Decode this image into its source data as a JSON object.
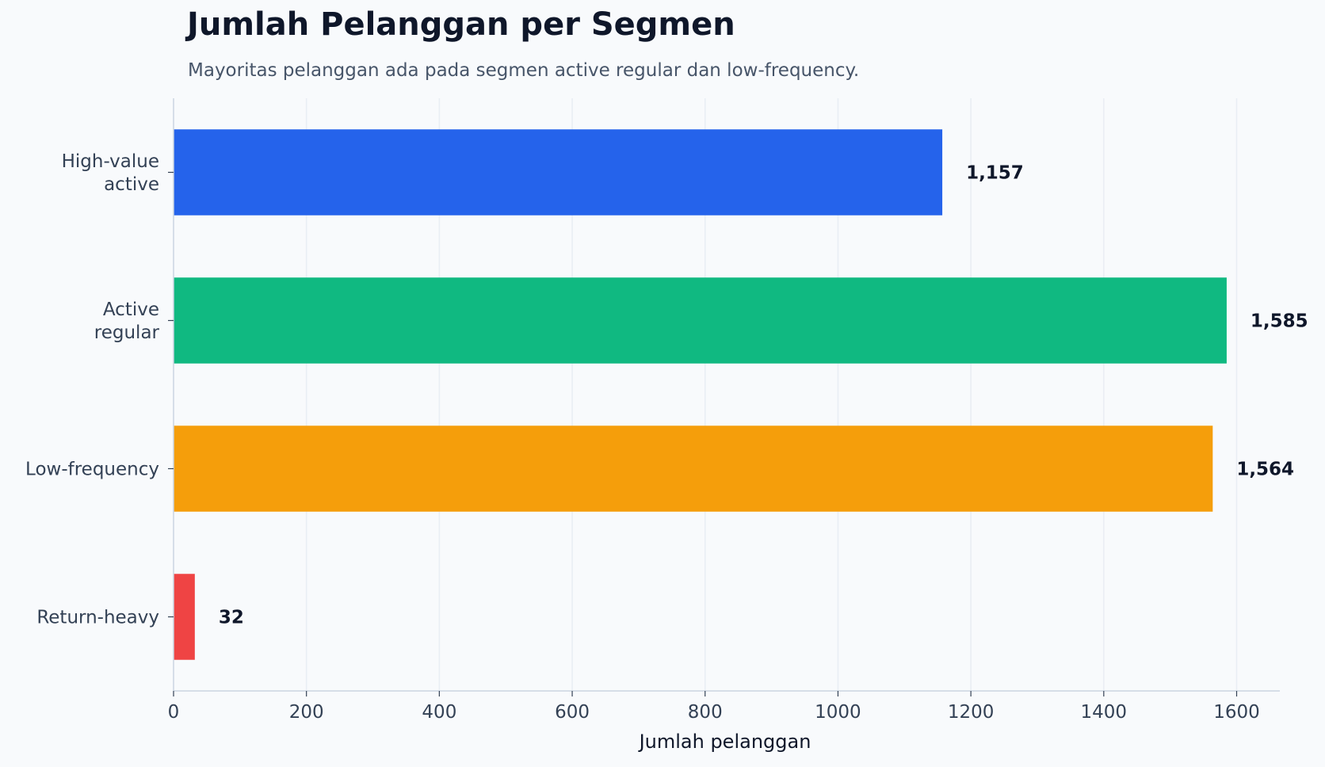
{
  "chart_data": {
    "type": "bar",
    "orientation": "horizontal",
    "title": "Jumlah Pelanggan per Segmen",
    "subtitle": "Mayoritas pelanggan ada pada segmen active regular dan low-frequency.",
    "xlabel": "Jumlah pelanggan",
    "ylabel": "",
    "xlim": [
      0,
      1665
    ],
    "xticks": [
      0,
      200,
      400,
      600,
      800,
      1000,
      1200,
      1400,
      1600
    ],
    "grid": "x",
    "categories": [
      [
        "High-value",
        "active"
      ],
      [
        "Active",
        "regular"
      ],
      [
        "Low-frequency"
      ],
      [
        "Return-heavy"
      ]
    ],
    "values": [
      1157,
      1585,
      1564,
      32
    ],
    "value_labels": [
      "1,157",
      "1,585",
      "1,564",
      "32"
    ],
    "colors": [
      "#2563eb",
      "#10b981",
      "#f59e0b",
      "#ef4444"
    ]
  }
}
